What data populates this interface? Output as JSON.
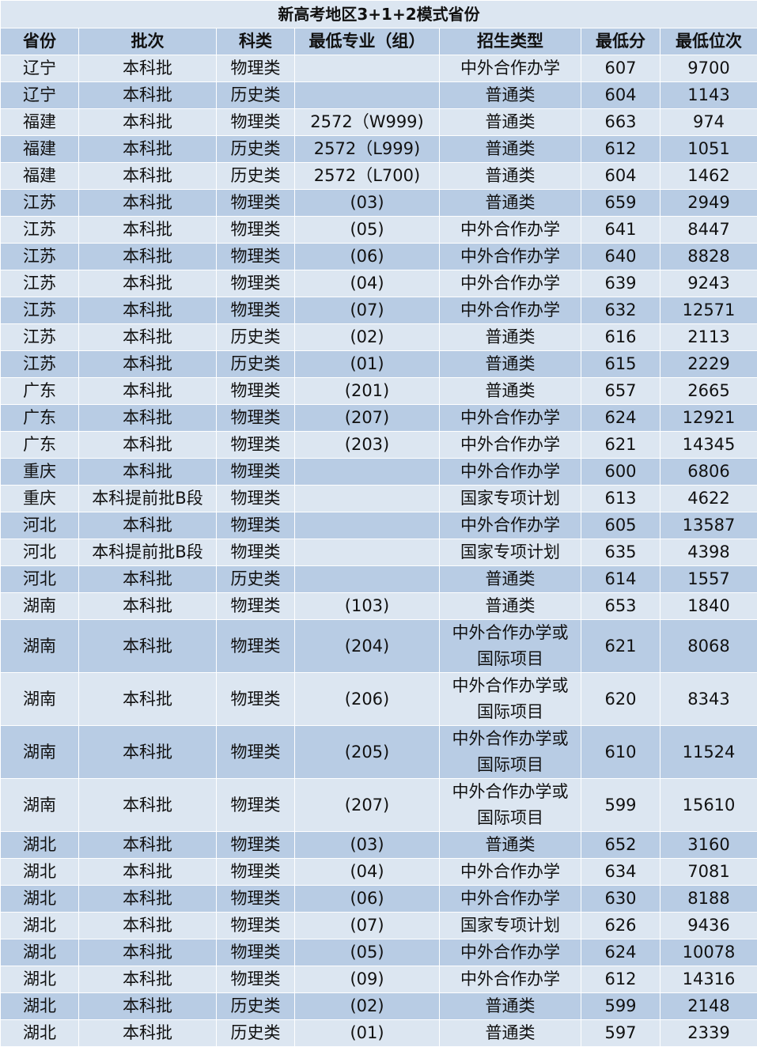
{
  "title": "新高考地区3+1+2模式省份",
  "headers": [
    "省份",
    "批次",
    "科类",
    "最低专业（组）",
    "招生类型",
    "最低分",
    "最低位次"
  ],
  "colors": {
    "light": "#dce6f1",
    "dark": "#b8cce4",
    "border": "#ffffff"
  },
  "rows": [
    [
      "辽宁",
      "本科批",
      "物理类",
      "",
      "中外合作办学",
      "607",
      "9700"
    ],
    [
      "辽宁",
      "本科批",
      "历史类",
      "",
      "普通类",
      "604",
      "1143"
    ],
    [
      "福建",
      "本科批",
      "物理类",
      "2572（W999)",
      "普通类",
      "663",
      "974"
    ],
    [
      "福建",
      "本科批",
      "历史类",
      "2572（L999)",
      "普通类",
      "612",
      "1051"
    ],
    [
      "福建",
      "本科批",
      "历史类",
      "2572（L700)",
      "普通类",
      "604",
      "1462"
    ],
    [
      "江苏",
      "本科批",
      "物理类",
      "(03)",
      "普通类",
      "659",
      "2949"
    ],
    [
      "江苏",
      "本科批",
      "物理类",
      "(05)",
      "中外合作办学",
      "641",
      "8447"
    ],
    [
      "江苏",
      "本科批",
      "物理类",
      "(06)",
      "中外合作办学",
      "640",
      "8828"
    ],
    [
      "江苏",
      "本科批",
      "物理类",
      "(04)",
      "中外合作办学",
      "639",
      "9243"
    ],
    [
      "江苏",
      "本科批",
      "物理类",
      "(07)",
      "中外合作办学",
      "632",
      "12571"
    ],
    [
      "江苏",
      "本科批",
      "历史类",
      "(02)",
      "普通类",
      "616",
      "2113"
    ],
    [
      "江苏",
      "本科批",
      "历史类",
      "(01)",
      "普通类",
      "615",
      "2229"
    ],
    [
      "广东",
      "本科批",
      "物理类",
      "(201)",
      "普通类",
      "657",
      "2665"
    ],
    [
      "广东",
      "本科批",
      "物理类",
      "(207)",
      "中外合作办学",
      "624",
      "12921"
    ],
    [
      "广东",
      "本科批",
      "物理类",
      "(203)",
      "中外合作办学",
      "621",
      "14345"
    ],
    [
      "重庆",
      "本科批",
      "物理类",
      "",
      "中外合作办学",
      "600",
      "6806"
    ],
    [
      "重庆",
      "本科提前批B段",
      "物理类",
      "",
      "国家专项计划",
      "613",
      "4622"
    ],
    [
      "河北",
      "本科批",
      "物理类",
      "",
      "中外合作办学",
      "605",
      "13587"
    ],
    [
      "河北",
      "本科提前批B段",
      "物理类",
      "",
      "国家专项计划",
      "635",
      "4398"
    ],
    [
      "河北",
      "本科批",
      "历史类",
      "",
      "普通类",
      "614",
      "1557"
    ],
    [
      "湖南",
      "本科批",
      "物理类",
      "(103)",
      "普通类",
      "653",
      "1840"
    ],
    [
      "湖南",
      "本科批",
      "物理类",
      "(204)",
      "中外合作办学或国际项目",
      "621",
      "8068"
    ],
    [
      "湖南",
      "本科批",
      "物理类",
      "(206)",
      "中外合作办学或国际项目",
      "620",
      "8343"
    ],
    [
      "湖南",
      "本科批",
      "物理类",
      "(205)",
      "中外合作办学或国际项目",
      "610",
      "11524"
    ],
    [
      "湖南",
      "本科批",
      "物理类",
      "(207)",
      "中外合作办学或国际项目",
      "599",
      "15610"
    ],
    [
      "湖北",
      "本科批",
      "物理类",
      "(03)",
      "普通类",
      "652",
      "3160"
    ],
    [
      "湖北",
      "本科批",
      "物理类",
      "(04)",
      "中外合作办学",
      "634",
      "7081"
    ],
    [
      "湖北",
      "本科批",
      "物理类",
      "(06)",
      "中外合作办学",
      "630",
      "8188"
    ],
    [
      "湖北",
      "本科批",
      "物理类",
      "(07)",
      "国家专项计划",
      "626",
      "9436"
    ],
    [
      "湖北",
      "本科批",
      "物理类",
      "(05)",
      "中外合作办学",
      "624",
      "10078"
    ],
    [
      "湖北",
      "本科批",
      "物理类",
      "(09)",
      "中外合作办学",
      "612",
      "14316"
    ],
    [
      "湖北",
      "本科批",
      "历史类",
      "(02)",
      "普通类",
      "599",
      "2148"
    ],
    [
      "湖北",
      "本科批",
      "历史类",
      "(01)",
      "普通类",
      "597",
      "2339"
    ]
  ]
}
